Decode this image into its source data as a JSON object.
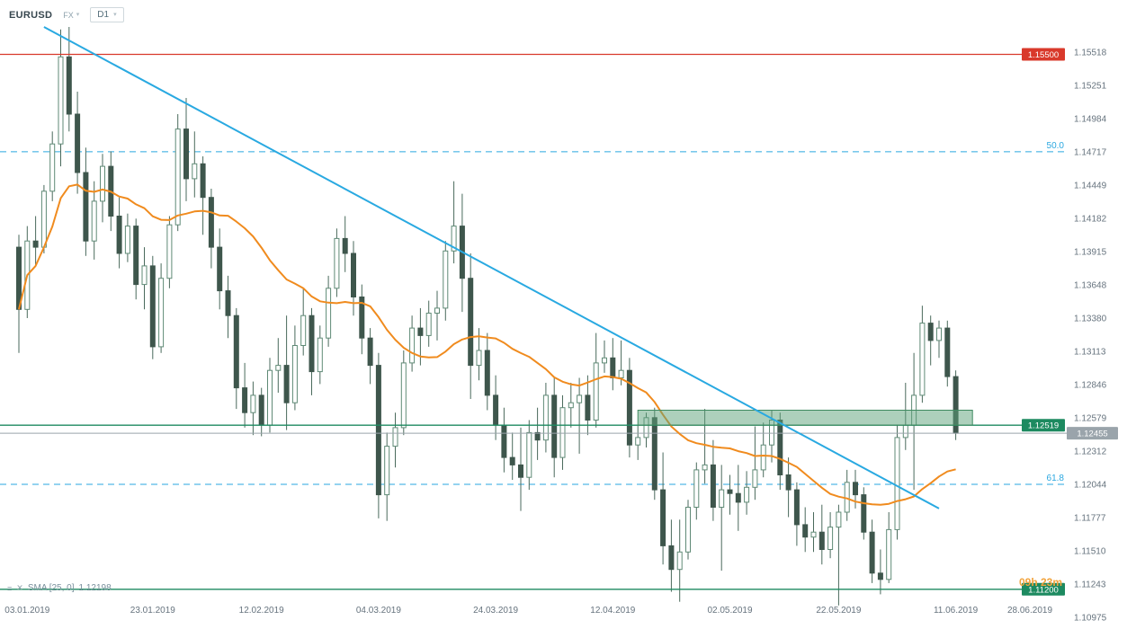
{
  "header": {
    "symbol": "EURUSD",
    "market_label": "FX",
    "timeframe": "D1"
  },
  "icons": {
    "caret": "▾",
    "menu": "≡",
    "close": "✕"
  },
  "indicator": {
    "label": "SMA [25, 0]",
    "value": "1.12198"
  },
  "countdown": "09h 23m",
  "colors": {
    "up": "#ffffff",
    "up_border": "#5f8a76",
    "down": "#3e564c",
    "wick": "#4a6a5c",
    "sma": "#f08b1e",
    "trendline": "#29a9e1",
    "fib": "#2aa7e0",
    "resistance": "#d9392b",
    "level_green": "#1d8a60",
    "current": "#9aa4ab",
    "zone_fill": "rgba(92,162,122,0.5)",
    "zone_border": "#3f8a60",
    "axis_text": "#66737e"
  },
  "chart_data": {
    "type": "candlestick",
    "title": "EURUSD D1",
    "symbol": "EURUSD",
    "timeframe": "D1",
    "price_ticks": [
      "1.15518",
      "1.15251",
      "1.14984",
      "1.14717",
      "1.14449",
      "1.14182",
      "1.13915",
      "1.13648",
      "1.13380",
      "1.13113",
      "1.12846",
      "1.12579",
      "1.12312",
      "1.12044",
      "1.11777",
      "1.11510",
      "1.11243",
      "1.10975"
    ],
    "date_labels": [
      {
        "label": "03.01.2019",
        "index": 1
      },
      {
        "label": "23.01.2019",
        "index": 16
      },
      {
        "label": "12.02.2019",
        "index": 29
      },
      {
        "label": "04.03.2019",
        "index": 43
      },
      {
        "label": "24.03.2019",
        "index": 57
      },
      {
        "label": "12.04.2019",
        "index": 71
      },
      {
        "label": "02.05.2019",
        "index": 85
      },
      {
        "label": "22.05.2019",
        "index": 98
      },
      {
        "label": "11.06.2019",
        "index": 112
      },
      {
        "label": "28.06.2019",
        "index": 121
      }
    ],
    "sma_period": 25,
    "sma_current": "1.12198",
    "levels": [
      {
        "price": 1.155,
        "label": "1.15500",
        "type": "resistance",
        "color": "red"
      },
      {
        "price": 1.12519,
        "label": "1.12519",
        "type": "support",
        "color": "green"
      },
      {
        "price": 1.12455,
        "label": "1.12455",
        "type": "current-price",
        "color": "gray"
      },
      {
        "price": 1.112,
        "label": "1.11200",
        "type": "support",
        "color": "green"
      }
    ],
    "fib_levels": [
      {
        "price": 1.14717,
        "label": "50.0"
      },
      {
        "price": 1.12044,
        "label": "61.8"
      }
    ],
    "trendline": {
      "from_index": 3,
      "from_price": 1.1572,
      "to_index": 110,
      "to_price": 1.1185
    },
    "zone": {
      "from_index": 74,
      "to_index": 114,
      "top": 1.1264,
      "bottom": 1.1252
    },
    "candles": [
      [
        1.1395,
        1.1405,
        1.131,
        1.1345
      ],
      [
        1.1345,
        1.1412,
        1.1338,
        1.14
      ],
      [
        1.14,
        1.142,
        1.138,
        1.1395
      ],
      [
        1.1395,
        1.1445,
        1.139,
        1.144
      ],
      [
        1.144,
        1.1488,
        1.1432,
        1.1478
      ],
      [
        1.1478,
        1.157,
        1.146,
        1.1548
      ],
      [
        1.1548,
        1.1572,
        1.1488,
        1.1502
      ],
      [
        1.1502,
        1.152,
        1.1438,
        1.1455
      ],
      [
        1.1455,
        1.1475,
        1.1388,
        1.14
      ],
      [
        1.14,
        1.1448,
        1.1385,
        1.1432
      ],
      [
        1.1432,
        1.147,
        1.1415,
        1.146
      ],
      [
        1.146,
        1.1472,
        1.1408,
        1.142
      ],
      [
        1.142,
        1.1435,
        1.1378,
        1.139
      ],
      [
        1.139,
        1.1422,
        1.1383,
        1.1412
      ],
      [
        1.1412,
        1.1418,
        1.1353,
        1.1365
      ],
      [
        1.1365,
        1.1395,
        1.1345,
        1.138
      ],
      [
        1.138,
        1.1388,
        1.1305,
        1.1315
      ],
      [
        1.1315,
        1.1382,
        1.131,
        1.137
      ],
      [
        1.137,
        1.142,
        1.1362,
        1.1413
      ],
      [
        1.1413,
        1.1502,
        1.1408,
        1.149
      ],
      [
        1.149,
        1.1515,
        1.1432,
        1.145
      ],
      [
        1.145,
        1.1488,
        1.1435,
        1.1462
      ],
      [
        1.1462,
        1.1468,
        1.1405,
        1.1435
      ],
      [
        1.1435,
        1.1442,
        1.1378,
        1.1395
      ],
      [
        1.1395,
        1.141,
        1.1345,
        1.136
      ],
      [
        1.136,
        1.1372,
        1.1322,
        1.134
      ],
      [
        1.134,
        1.1346,
        1.1265,
        1.1282
      ],
      [
        1.1282,
        1.1302,
        1.125,
        1.1262
      ],
      [
        1.1262,
        1.1287,
        1.1244,
        1.1276
      ],
      [
        1.1276,
        1.1282,
        1.1243,
        1.1252
      ],
      [
        1.1252,
        1.1306,
        1.1246,
        1.1296
      ],
      [
        1.1296,
        1.1322,
        1.1278,
        1.13
      ],
      [
        1.13,
        1.134,
        1.1248,
        1.127
      ],
      [
        1.127,
        1.1332,
        1.1264,
        1.1316
      ],
      [
        1.1316,
        1.1362,
        1.1308,
        1.134
      ],
      [
        1.134,
        1.1346,
        1.1276,
        1.1295
      ],
      [
        1.1295,
        1.1332,
        1.1285,
        1.1322
      ],
      [
        1.1322,
        1.1372,
        1.1315,
        1.1362
      ],
      [
        1.1362,
        1.141,
        1.1355,
        1.1402
      ],
      [
        1.1402,
        1.142,
        1.1375,
        1.139
      ],
      [
        1.139,
        1.14,
        1.134,
        1.1355
      ],
      [
        1.1355,
        1.1365,
        1.1309,
        1.1322
      ],
      [
        1.1322,
        1.133,
        1.1285,
        1.13
      ],
      [
        1.13,
        1.131,
        1.1177,
        1.1196
      ],
      [
        1.1196,
        1.1246,
        1.1175,
        1.1235
      ],
      [
        1.1235,
        1.1262,
        1.1218,
        1.125
      ],
      [
        1.125,
        1.1312,
        1.1244,
        1.1302
      ],
      [
        1.1302,
        1.134,
        1.1295,
        1.133
      ],
      [
        1.133,
        1.1346,
        1.13,
        1.1324
      ],
      [
        1.1324,
        1.1352,
        1.1315,
        1.1342
      ],
      [
        1.1342,
        1.136,
        1.132,
        1.1346
      ],
      [
        1.1346,
        1.14,
        1.1336,
        1.1392
      ],
      [
        1.1392,
        1.1448,
        1.1382,
        1.1412
      ],
      [
        1.1412,
        1.1438,
        1.1343,
        1.137
      ],
      [
        1.137,
        1.139,
        1.1273,
        1.13
      ],
      [
        1.13,
        1.133,
        1.1288,
        1.1312
      ],
      [
        1.1312,
        1.1326,
        1.1264,
        1.1276
      ],
      [
        1.1276,
        1.1292,
        1.124,
        1.1252
      ],
      [
        1.1252,
        1.1266,
        1.1214,
        1.1226
      ],
      [
        1.1226,
        1.1246,
        1.1208,
        1.122
      ],
      [
        1.122,
        1.125,
        1.1183,
        1.121
      ],
      [
        1.121,
        1.1256,
        1.12,
        1.1246
      ],
      [
        1.1246,
        1.1266,
        1.1224,
        1.124
      ],
      [
        1.124,
        1.1286,
        1.123,
        1.1276
      ],
      [
        1.1276,
        1.129,
        1.121,
        1.1226
      ],
      [
        1.1226,
        1.1276,
        1.1216,
        1.1266
      ],
      [
        1.1266,
        1.1286,
        1.125,
        1.127
      ],
      [
        1.127,
        1.129,
        1.1229,
        1.1276
      ],
      [
        1.1276,
        1.1292,
        1.1244,
        1.1256
      ],
      [
        1.1256,
        1.1326,
        1.125,
        1.1302
      ],
      [
        1.1302,
        1.132,
        1.1294,
        1.1306
      ],
      [
        1.1306,
        1.1322,
        1.128,
        1.129
      ],
      [
        1.129,
        1.132,
        1.1284,
        1.1296
      ],
      [
        1.1296,
        1.1306,
        1.1226,
        1.1236
      ],
      [
        1.1236,
        1.1252,
        1.1224,
        1.1242
      ],
      [
        1.1242,
        1.1262,
        1.1234,
        1.1258
      ],
      [
        1.1258,
        1.1266,
        1.1192,
        1.12
      ],
      [
        1.12,
        1.123,
        1.114,
        1.1155
      ],
      [
        1.1155,
        1.1176,
        1.1118,
        1.1136
      ],
      [
        1.1136,
        1.1176,
        1.111,
        1.115
      ],
      [
        1.115,
        1.1192,
        1.1144,
        1.1186
      ],
      [
        1.1186,
        1.1222,
        1.1176,
        1.1216
      ],
      [
        1.1216,
        1.1265,
        1.1205,
        1.122
      ],
      [
        1.122,
        1.124,
        1.1175,
        1.1186
      ],
      [
        1.1186,
        1.122,
        1.1135,
        1.12
      ],
      [
        1.12,
        1.1212,
        1.118,
        1.1197
      ],
      [
        1.1197,
        1.122,
        1.1167,
        1.119
      ],
      [
        1.119,
        1.1215,
        1.118,
        1.1202
      ],
      [
        1.1202,
        1.1251,
        1.1192,
        1.1216
      ],
      [
        1.1216,
        1.1254,
        1.121,
        1.1236
      ],
      [
        1.1236,
        1.1264,
        1.1222,
        1.1256
      ],
      [
        1.1256,
        1.1262,
        1.12,
        1.1212
      ],
      [
        1.1212,
        1.1226,
        1.1178,
        1.12
      ],
      [
        1.12,
        1.1206,
        1.1155,
        1.1172
      ],
      [
        1.1172,
        1.1186,
        1.115,
        1.1162
      ],
      [
        1.1162,
        1.1182,
        1.115,
        1.1166
      ],
      [
        1.1166,
        1.1188,
        1.114,
        1.1152
      ],
      [
        1.1152,
        1.1182,
        1.1145,
        1.117
      ],
      [
        1.117,
        1.1188,
        1.1107,
        1.1182
      ],
      [
        1.1182,
        1.1216,
        1.1175,
        1.1206
      ],
      [
        1.1206,
        1.1216,
        1.1185,
        1.1196
      ],
      [
        1.1196,
        1.1202,
        1.116,
        1.1166
      ],
      [
        1.1166,
        1.1176,
        1.1125,
        1.1133
      ],
      [
        1.1133,
        1.1152,
        1.1116,
        1.1128
      ],
      [
        1.1128,
        1.1182,
        1.1125,
        1.1168
      ],
      [
        1.1168,
        1.1252,
        1.116,
        1.1242
      ],
      [
        1.1242,
        1.1286,
        1.1232,
        1.1252
      ],
      [
        1.1252,
        1.131,
        1.12,
        1.1276
      ],
      [
        1.1276,
        1.1348,
        1.127,
        1.1334
      ],
      [
        1.1334,
        1.134,
        1.13,
        1.132
      ],
      [
        1.132,
        1.1336,
        1.1306,
        1.133
      ],
      [
        1.133,
        1.1336,
        1.1283,
        1.1291
      ],
      [
        1.1291,
        1.1296,
        1.124,
        1.12455
      ]
    ]
  }
}
